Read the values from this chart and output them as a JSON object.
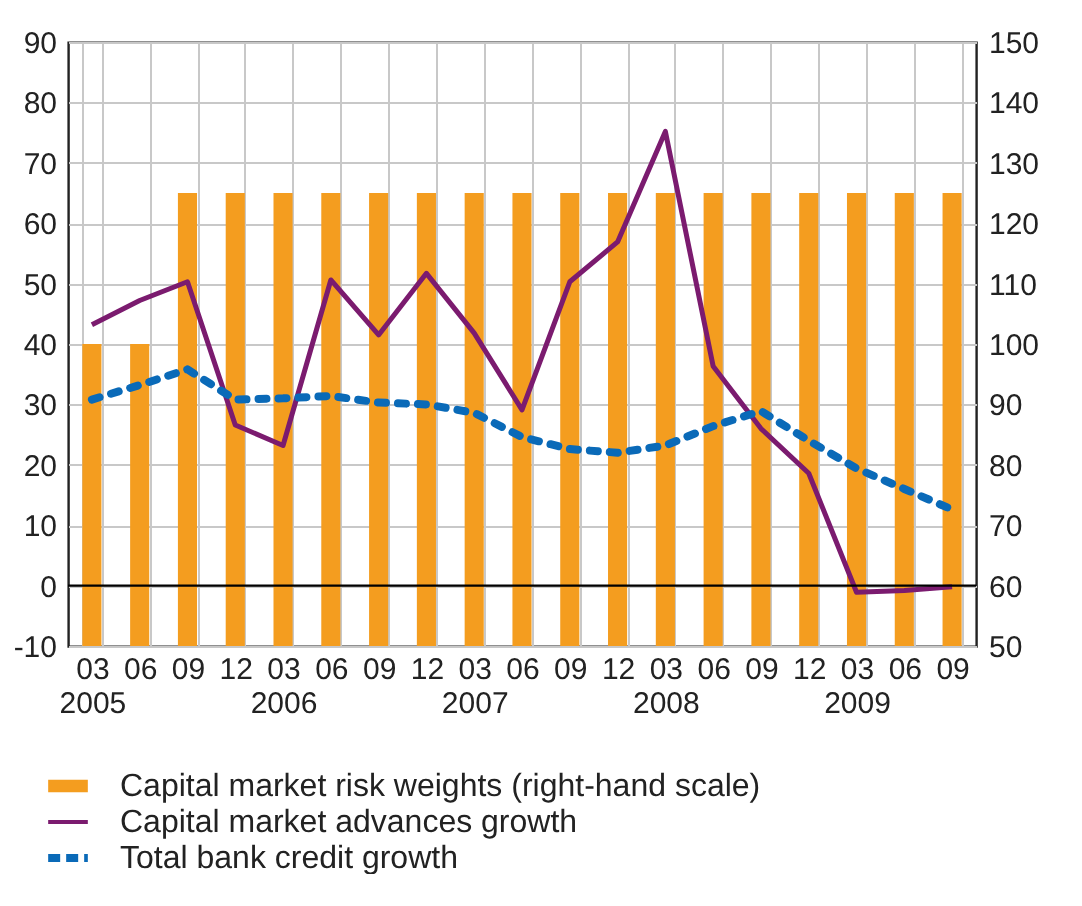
{
  "chart_data": {
    "type": "bar",
    "categories": [
      "03\n2005",
      "06",
      "09",
      "12",
      "03\n2006",
      "06",
      "09",
      "12",
      "03\n2007",
      "06",
      "09",
      "12",
      "03\n2008",
      "06",
      "09",
      "12",
      "03\n2009",
      "06",
      "09"
    ],
    "series": [
      {
        "name": "Capital market risk weights (right-hand scale)",
        "axis": "y2",
        "color": "#f49d1f",
        "values": [
          100,
          100,
          125,
          125,
          125,
          125,
          125,
          125,
          125,
          125,
          125,
          125,
          125,
          125,
          125,
          125,
          125,
          125,
          125
        ]
      },
      {
        "name": "Capital market advances growth",
        "type": "line",
        "color": "#7b1b6f",
        "line_style": "solid",
        "values": [
          43.2,
          47.2,
          50.3,
          26.6,
          23.2,
          50.6,
          41.5,
          51.7,
          41.8,
          29.1,
          50.3,
          56.9,
          75.2,
          36.3,
          26.0,
          18.6,
          -1.1,
          -0.8,
          -0.2
        ]
      },
      {
        "name": "Total bank credit growth",
        "type": "line",
        "color": "#0a6ab8",
        "line_style": "dashed",
        "values": [
          30.8,
          33.2,
          35.8,
          30.8,
          31.0,
          31.4,
          30.3,
          30.0,
          28.6,
          24.6,
          22.6,
          22.0,
          23.2,
          26.4,
          28.9,
          24.0,
          19.4,
          16.0,
          12.6
        ]
      }
    ],
    "ylim": [
      -10,
      90
    ],
    "yticks": [
      -10,
      0,
      10,
      20,
      30,
      40,
      50,
      60,
      70,
      80,
      90
    ],
    "y2lim": [
      50,
      150
    ],
    "y2ticks": [
      50,
      60,
      70,
      80,
      90,
      100,
      110,
      120,
      130,
      140,
      150
    ],
    "ref_lines": [
      {
        "axis": "y",
        "value": 0,
        "color": "#000000"
      }
    ],
    "grid": true,
    "legend": "bottom"
  }
}
